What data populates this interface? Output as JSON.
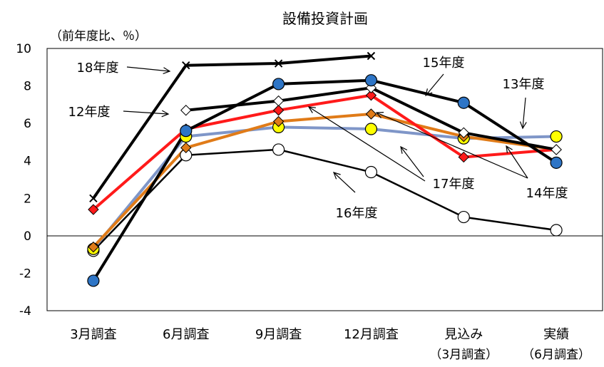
{
  "chart_data": {
    "type": "line",
    "title": "設備投資計画",
    "ylabel": "（前年度比、％）",
    "ylim": [
      -4,
      10
    ],
    "yticks": [
      "10",
      "8",
      "6",
      "4",
      "2",
      "0",
      "-2",
      "-4"
    ],
    "categories": [
      {
        "line1": "3月調査",
        "line2": ""
      },
      {
        "line1": "6月調査",
        "line2": ""
      },
      {
        "line1": "9月調査",
        "line2": ""
      },
      {
        "line1": "12月調査",
        "line2": ""
      },
      {
        "line1": "見込み",
        "line2": "（3月調査）"
      },
      {
        "line1": "実績",
        "line2": "（6月調査）"
      }
    ],
    "series": [
      {
        "name": "16年度",
        "color": "#000000",
        "marker": "circle",
        "fill": "#ffffff",
        "width": 2.5,
        "values": [
          -0.8,
          4.3,
          4.6,
          3.4,
          1.0,
          0.3
        ]
      },
      {
        "name": "13年度",
        "color": "#7f96c8",
        "marker": "circle",
        "fill": "#ffff00",
        "width": 4,
        "values": [
          -0.7,
          5.3,
          5.8,
          5.7,
          5.2,
          5.3
        ]
      },
      {
        "name": "14年度",
        "color": "#e07b18",
        "marker": "diamond",
        "fill": "#e07b18",
        "width": 4,
        "values": [
          -0.6,
          4.7,
          6.1,
          6.5,
          5.3,
          4.6
        ]
      },
      {
        "name": "17年度",
        "color": "#ff1a1a",
        "marker": "diamond",
        "fill": "#ff1a1a",
        "width": 4,
        "values": [
          1.4,
          5.7,
          6.7,
          7.5,
          4.2,
          4.6
        ]
      },
      {
        "name": "12年度",
        "color": "#000000",
        "marker": "diamond",
        "fill": "#ffffff",
        "width": 4,
        "values": [
          null,
          6.7,
          7.2,
          7.9,
          5.5,
          4.6
        ]
      },
      {
        "name": "15年度",
        "color": "#000000",
        "marker": "circle",
        "fill": "#2e75c6",
        "width": 4,
        "values": [
          -2.4,
          5.6,
          8.1,
          8.3,
          7.1,
          3.9
        ]
      },
      {
        "name": "18年度",
        "color": "#000000",
        "marker": "x",
        "fill": "none",
        "width": 4,
        "values": [
          2.0,
          9.1,
          9.2,
          9.6,
          null,
          null
        ]
      }
    ],
    "annotations": [
      "18年度",
      "12年度",
      "15年度",
      "13年度",
      "17年度",
      "16年度",
      "14年度"
    ]
  }
}
